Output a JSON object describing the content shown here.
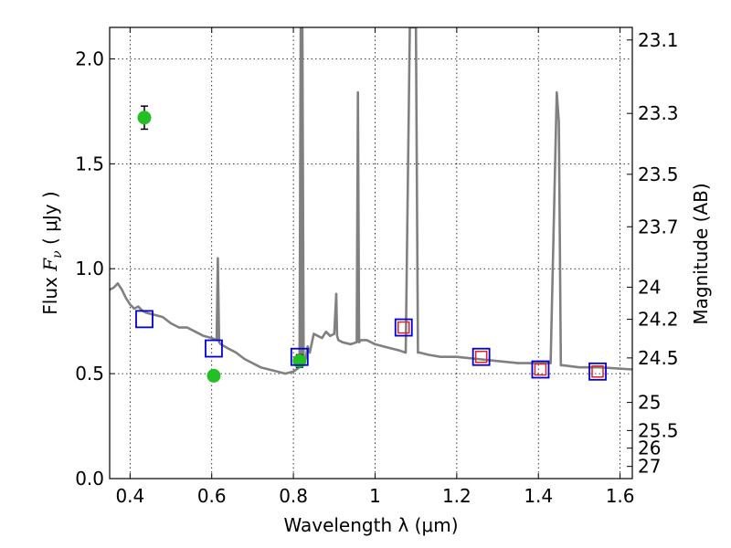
{
  "chart_data": {
    "type": "scatter",
    "xlabel": "Wavelength  λ (μm)",
    "ylabel_prefix": "Flux  ",
    "ylabel_var": "F",
    "ylabel_sub": "ν",
    "ylabel_suffix": " ( μJy )",
    "y2label": "Magnitude (AB)",
    "xlim": [
      0.35,
      1.63
    ],
    "ylim": [
      0.0,
      2.15
    ],
    "grid": true,
    "x_ticks": [
      {
        "value": 0.4,
        "label": "0.4"
      },
      {
        "value": 0.6,
        "label": "0.6"
      },
      {
        "value": 0.8,
        "label": "0.8"
      },
      {
        "value": 1.0,
        "label": "1"
      },
      {
        "value": 1.2,
        "label": "1.2"
      },
      {
        "value": 1.4,
        "label": "1.4"
      },
      {
        "value": 1.6,
        "label": "1.6"
      }
    ],
    "y_ticks": [
      {
        "value": 0.0,
        "label": "0.0"
      },
      {
        "value": 0.5,
        "label": "0.5"
      },
      {
        "value": 1.0,
        "label": "1.0"
      },
      {
        "value": 1.5,
        "label": "1.5"
      },
      {
        "value": 2.0,
        "label": "2.0"
      }
    ],
    "magnitude_ticks": [
      {
        "label": "23.1",
        "flux": 2.09
      },
      {
        "label": "23.3",
        "flux": 1.74
      },
      {
        "label": "23.5",
        "flux": 1.45
      },
      {
        "label": "23.7",
        "flux": 1.2
      },
      {
        "label": "24",
        "flux": 0.912
      },
      {
        "label": "24.2",
        "flux": 0.759
      },
      {
        "label": "24.5",
        "flux": 0.575
      },
      {
        "label": "25",
        "flux": 0.363
      },
      {
        "label": "25.5",
        "flux": 0.229
      },
      {
        "label": "26",
        "flux": 0.145
      },
      {
        "label": "27",
        "flux": 0.058
      }
    ],
    "series": [
      {
        "name": "model_sed",
        "kind": "line",
        "color": "#808080",
        "x": [
          0.35,
          0.36,
          0.37,
          0.38,
          0.39,
          0.4,
          0.41,
          0.42,
          0.43,
          0.44,
          0.46,
          0.48,
          0.5,
          0.52,
          0.54,
          0.56,
          0.58,
          0.6,
          0.612,
          0.615,
          0.618,
          0.622,
          0.64,
          0.66,
          0.68,
          0.7,
          0.72,
          0.74,
          0.76,
          0.78,
          0.8,
          0.815,
          0.818,
          0.82,
          0.822,
          0.825,
          0.83,
          0.835,
          0.84,
          0.85,
          0.86,
          0.87,
          0.88,
          0.89,
          0.9,
          0.905,
          0.907,
          0.91,
          0.92,
          0.94,
          0.955,
          0.958,
          0.961,
          0.965,
          0.98,
          1.0,
          1.02,
          1.04,
          1.06,
          1.075,
          1.085,
          1.09,
          1.1,
          1.105,
          1.11,
          1.13,
          1.16,
          1.2,
          1.25,
          1.3,
          1.35,
          1.4,
          1.43,
          1.445,
          1.45,
          1.455,
          1.46,
          1.5,
          1.55,
          1.63
        ],
        "y": [
          0.9,
          0.91,
          0.93,
          0.9,
          0.86,
          0.83,
          0.81,
          0.82,
          0.8,
          0.79,
          0.78,
          0.77,
          0.74,
          0.72,
          0.72,
          0.7,
          0.68,
          0.67,
          0.66,
          1.05,
          0.65,
          0.64,
          0.62,
          0.6,
          0.57,
          0.55,
          0.53,
          0.52,
          0.51,
          0.5,
          0.51,
          0.53,
          2.15,
          0.55,
          2.15,
          0.56,
          0.57,
          0.63,
          0.6,
          0.69,
          0.68,
          0.67,
          0.7,
          0.68,
          0.69,
          0.88,
          0.68,
          0.66,
          0.65,
          0.64,
          0.65,
          1.84,
          0.65,
          0.66,
          0.66,
          0.64,
          0.63,
          0.62,
          0.61,
          0.6,
          2.15,
          2.15,
          2.15,
          0.6,
          0.6,
          0.59,
          0.58,
          0.58,
          0.57,
          0.56,
          0.55,
          0.55,
          0.55,
          1.84,
          1.7,
          0.54,
          0.54,
          0.53,
          0.53,
          0.52
        ]
      },
      {
        "name": "observed_green",
        "kind": "scatter",
        "color": "#22c022",
        "points": [
          {
            "x": 0.435,
            "y": 1.72,
            "err": 0.055
          },
          {
            "x": 0.605,
            "y": 0.49,
            "err": 0.02
          },
          {
            "x": 0.815,
            "y": 0.56,
            "err": 0.03
          }
        ]
      },
      {
        "name": "model_blue_squares",
        "kind": "scatter",
        "color": "#0000dd",
        "points": [
          {
            "x": 0.435,
            "y": 0.76
          },
          {
            "x": 0.605,
            "y": 0.62
          },
          {
            "x": 0.815,
            "y": 0.58
          },
          {
            "x": 1.07,
            "y": 0.72
          },
          {
            "x": 1.26,
            "y": 0.58
          },
          {
            "x": 1.405,
            "y": 0.52
          },
          {
            "x": 1.545,
            "y": 0.51
          }
        ]
      },
      {
        "name": "observed_red_squares",
        "kind": "scatter",
        "color": "#dd2222",
        "points": [
          {
            "x": 1.07,
            "y": 0.72
          },
          {
            "x": 1.26,
            "y": 0.58
          },
          {
            "x": 1.405,
            "y": 0.52
          },
          {
            "x": 1.545,
            "y": 0.51
          }
        ]
      }
    ]
  }
}
